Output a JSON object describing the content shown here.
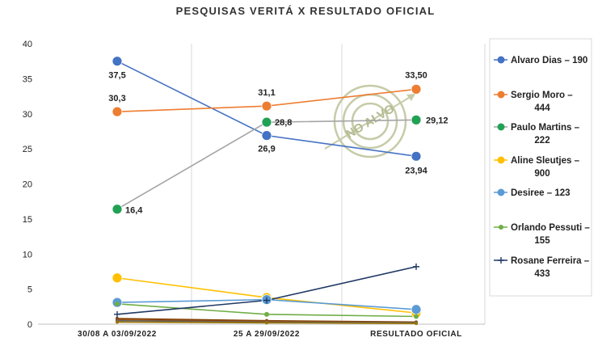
{
  "chart_data": {
    "type": "line",
    "title": "PESQUISAS VERITÁ X RESULTADO OFICIAL",
    "categories": [
      "30/08 A 03/09/2022",
      "25 A 29/09/2022",
      "RESULTADO OFICIAL"
    ],
    "ylim": [
      0,
      40
    ],
    "yticks": [
      0,
      5,
      10,
      15,
      20,
      25,
      30,
      35,
      40
    ],
    "grid": "vertical",
    "legend_position": "right",
    "series": [
      {
        "name": "Alvaro Dias – 190",
        "legend_lines": [
          "Alvaro Dias – 190"
        ],
        "color": "#4472c4",
        "marker": "circle",
        "values": [
          37.5,
          26.9,
          23.94
        ],
        "labels": [
          "37,5",
          "26,9",
          "23,94"
        ]
      },
      {
        "name": "Sergio Moro – 444",
        "legend_lines": [
          "Sergio Moro –",
          "444"
        ],
        "color": "#ed7d31",
        "marker": "circle",
        "values": [
          30.3,
          31.1,
          33.5
        ],
        "labels": [
          "30,3",
          "31,1",
          "33,50"
        ]
      },
      {
        "name": "Paulo Martins – 222",
        "legend_lines": [
          "Paulo Martins –",
          "222"
        ],
        "color": "#a5a5a5",
        "marker_color": "#21a153",
        "marker": "circle",
        "values": [
          16.4,
          28.8,
          29.12
        ],
        "labels": [
          "16,4",
          "28,8",
          "29,12"
        ]
      },
      {
        "name": "Aline Sleutjes – 900",
        "legend_lines": [
          "Aline Sleutjes –",
          "900"
        ],
        "color": "#ffc000",
        "marker": "circle",
        "values": [
          6.6,
          3.8,
          1.6
        ],
        "labels": []
      },
      {
        "name": "Desiree – 123",
        "legend_lines": [
          "Desiree – 123"
        ],
        "color": "#5b9bd5",
        "marker": "circle",
        "values": [
          3.1,
          3.5,
          2.1
        ],
        "labels": []
      },
      {
        "name": "Orlando Pessuti – 155",
        "legend_lines": [
          "Orlando Pessuti –",
          "155"
        ],
        "color": "#70ad47",
        "marker": "dot",
        "values": [
          2.9,
          1.4,
          1.1
        ],
        "labels": []
      },
      {
        "name": "Rosane Ferreira – 433",
        "legend_lines": [
          "Rosane Ferreira –",
          "433"
        ],
        "color": "#203864",
        "marker": "plus",
        "values": [
          1.4,
          3.4,
          8.2
        ],
        "labels": []
      }
    ],
    "minor_series": [
      {
        "color": "#7f3f00",
        "values": [
          0.8,
          0.5,
          0.3
        ]
      },
      {
        "color": "#9e480e",
        "values": [
          0.6,
          0.4,
          0.2
        ]
      },
      {
        "color": "#636363",
        "values": [
          0.5,
          0.3,
          0.2
        ]
      },
      {
        "color": "#997300",
        "values": [
          0.3,
          0.2,
          0.1
        ]
      }
    ]
  },
  "watermark": {
    "text": "NO ALVO"
  }
}
